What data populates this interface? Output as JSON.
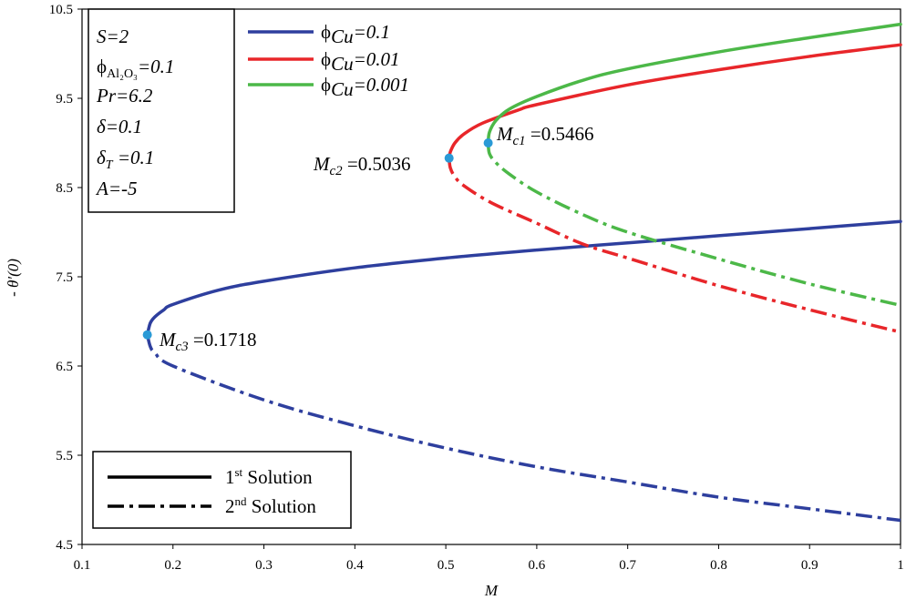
{
  "chart_data": {
    "type": "line",
    "xlabel": "M",
    "ylabel": "- θ′(0)",
    "xlim": [
      0.1,
      1.0
    ],
    "ylim": [
      4.5,
      10.5
    ],
    "xticks": [
      {
        "v": 0.1,
        "label": "0.1"
      },
      {
        "v": 0.2,
        "label": "0.2"
      },
      {
        "v": 0.3,
        "label": "0.3"
      },
      {
        "v": 0.4,
        "label": "0.4"
      },
      {
        "v": 0.5,
        "label": "0.5"
      },
      {
        "v": 0.6,
        "label": "0.6"
      },
      {
        "v": 0.7,
        "label": "0.7"
      },
      {
        "v": 0.8,
        "label": "0.8"
      },
      {
        "v": 0.9,
        "label": "0.9"
      },
      {
        "v": 1.0,
        "label": "1"
      }
    ],
    "yticks": [
      {
        "v": 4.5,
        "label": "4.5"
      },
      {
        "v": 5.5,
        "label": "5.5"
      },
      {
        "v": 6.5,
        "label": "6.5"
      },
      {
        "v": 7.5,
        "label": "7.5"
      },
      {
        "v": 8.5,
        "label": "8.5"
      },
      {
        "v": 9.5,
        "label": "9.5"
      },
      {
        "v": 10.5,
        "label": "10.5"
      }
    ],
    "parameters": {
      "S": "S=2",
      "phi_al2o3_phi": "ϕ",
      "phi_al2o3_sub": "Al₂O₃",
      "phi_al2o3_val": "=0.1",
      "Pr": "Pr=6.2",
      "delta": "δ=0.1",
      "deltaT_main": "δ",
      "deltaT_sub": "T",
      "deltaT_val": " =0.1",
      "A": "A=-5"
    },
    "series": [
      {
        "name_phi": "ϕ",
        "name_sub": "Cu",
        "name_val": "=0.1",
        "color": "#2e3f9e",
        "critical": {
          "x": 0.1718,
          "y": 6.85,
          "label_main": "M",
          "label_sub": "c3",
          "label_val": " =0.1718"
        },
        "first_solution": [
          [
            0.1718,
            6.85
          ],
          [
            0.175,
            6.98
          ],
          [
            0.18,
            7.05
          ],
          [
            0.19,
            7.13
          ],
          [
            0.2,
            7.19
          ],
          [
            0.25,
            7.35
          ],
          [
            0.3,
            7.45
          ],
          [
            0.4,
            7.6
          ],
          [
            0.5,
            7.71
          ],
          [
            0.6,
            7.8
          ],
          [
            0.7,
            7.88
          ],
          [
            0.8,
            7.96
          ],
          [
            0.9,
            8.04
          ],
          [
            1.0,
            8.12
          ]
        ],
        "second_solution": [
          [
            0.1718,
            6.85
          ],
          [
            0.175,
            6.72
          ],
          [
            0.18,
            6.65
          ],
          [
            0.2,
            6.5
          ],
          [
            0.3,
            6.12
          ],
          [
            0.4,
            5.83
          ],
          [
            0.5,
            5.58
          ],
          [
            0.6,
            5.37
          ],
          [
            0.7,
            5.2
          ],
          [
            0.8,
            5.03
          ],
          [
            0.9,
            4.9
          ],
          [
            1.0,
            4.77
          ]
        ]
      },
      {
        "name_phi": "ϕ",
        "name_sub": "Cu",
        "name_val": "=0.01",
        "color": "#e8262a",
        "critical": {
          "x": 0.5036,
          "y": 8.83,
          "label_main": "M",
          "label_sub": "c2",
          "label_val": " =0.5036"
        },
        "first_solution": [
          [
            0.5036,
            8.83
          ],
          [
            0.505,
            8.9
          ],
          [
            0.51,
            9.0
          ],
          [
            0.52,
            9.1
          ],
          [
            0.54,
            9.22
          ],
          [
            0.58,
            9.37
          ],
          [
            0.6,
            9.43
          ],
          [
            0.7,
            9.65
          ],
          [
            0.8,
            9.82
          ],
          [
            0.9,
            9.97
          ],
          [
            1.0,
            10.1
          ]
        ],
        "second_solution": [
          [
            0.5036,
            8.83
          ],
          [
            0.505,
            8.72
          ],
          [
            0.51,
            8.62
          ],
          [
            0.52,
            8.52
          ],
          [
            0.55,
            8.33
          ],
          [
            0.6,
            8.1
          ],
          [
            0.65,
            7.87
          ],
          [
            0.7,
            7.71
          ],
          [
            0.8,
            7.4
          ],
          [
            0.9,
            7.13
          ],
          [
            1.0,
            6.88
          ]
        ]
      },
      {
        "name_phi": "ϕ",
        "name_sub": "Cu",
        "name_val": "=0.001",
        "color": "#4cb848",
        "critical": {
          "x": 0.5466,
          "y": 9.0,
          "label_main": "M",
          "label_sub": "c1",
          "label_val": " =0.5466"
        },
        "first_solution": [
          [
            0.5466,
            9.0
          ],
          [
            0.548,
            9.12
          ],
          [
            0.555,
            9.25
          ],
          [
            0.57,
            9.38
          ],
          [
            0.6,
            9.52
          ],
          [
            0.65,
            9.7
          ],
          [
            0.7,
            9.83
          ],
          [
            0.8,
            10.02
          ],
          [
            0.9,
            10.18
          ],
          [
            1.0,
            10.33
          ]
        ],
        "second_solution": [
          [
            0.5466,
            9.0
          ],
          [
            0.548,
            8.88
          ],
          [
            0.555,
            8.78
          ],
          [
            0.57,
            8.65
          ],
          [
            0.6,
            8.45
          ],
          [
            0.65,
            8.2
          ],
          [
            0.7,
            8.0
          ],
          [
            0.8,
            7.7
          ],
          [
            0.9,
            7.42
          ],
          [
            1.0,
            7.18
          ]
        ]
      }
    ],
    "linestyle_legend": [
      {
        "label_sup": "st",
        "label_pre": "1",
        "label_post": " Solution",
        "style": "solid"
      },
      {
        "label_sup": "nd",
        "label_pre": "2",
        "label_post": " Solution",
        "style": "dashdot"
      }
    ],
    "grid": false
  }
}
